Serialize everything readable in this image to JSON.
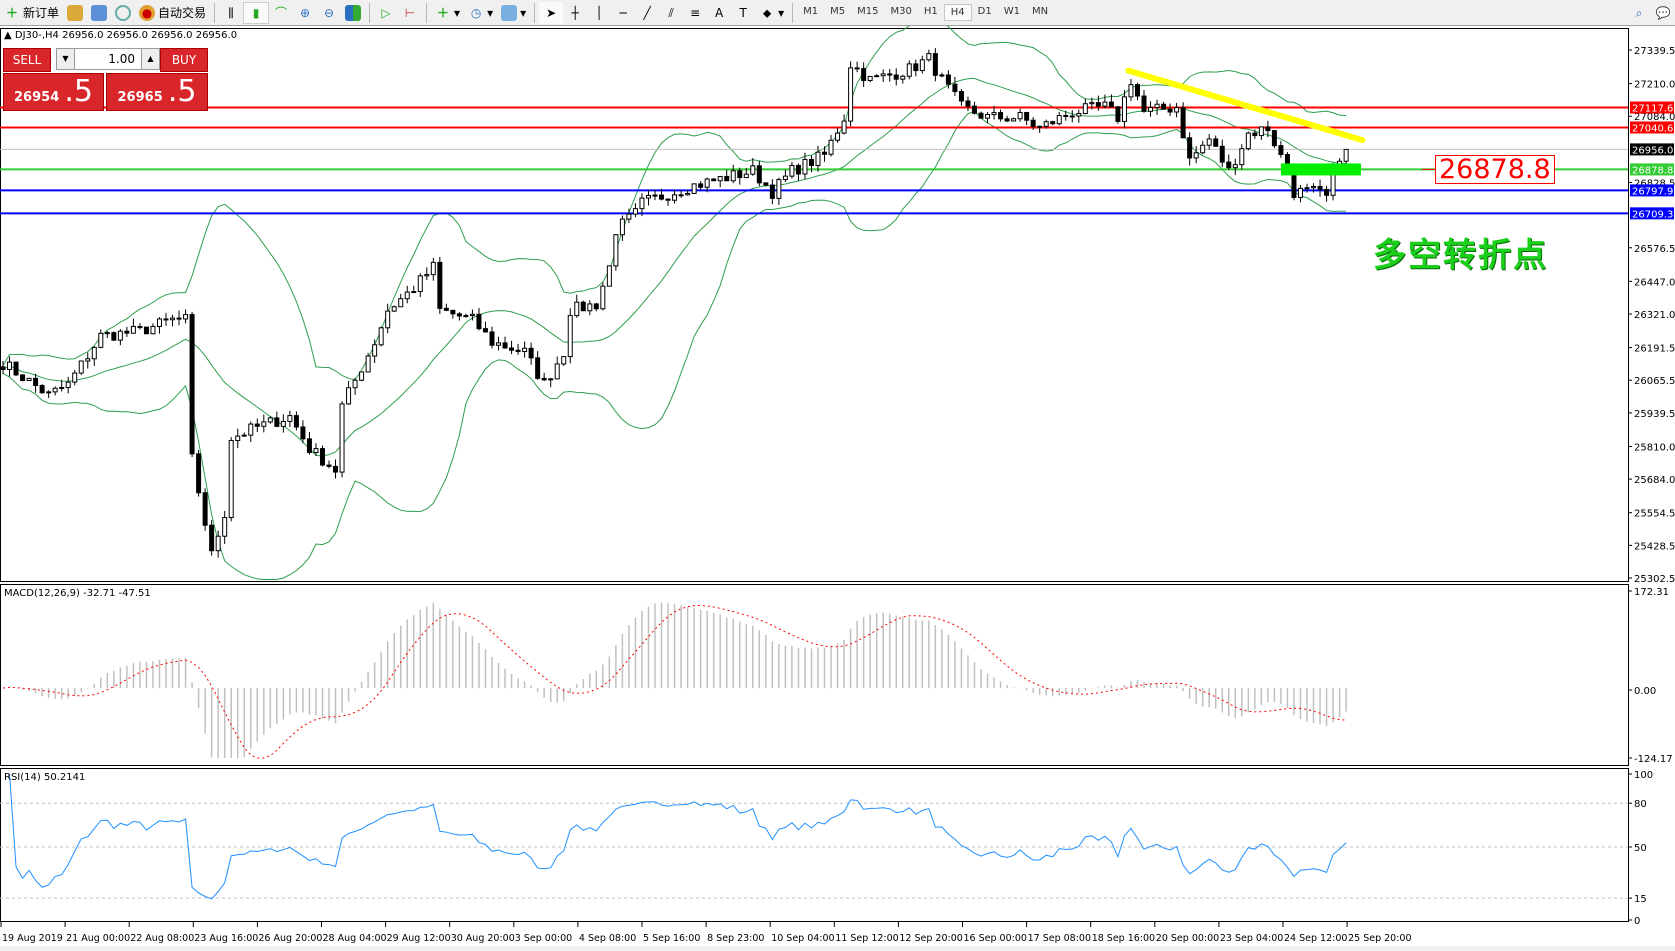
{
  "toolbar": {
    "new_order": "新订单",
    "auto_trading": "自动交易",
    "timeframes": [
      "M1",
      "M5",
      "M15",
      "M30",
      "H1",
      "H4",
      "D1",
      "W1",
      "MN"
    ],
    "active_timeframe": "H4",
    "icons": [
      "new-order-icon",
      "market-watch-icon",
      "navigator-icon",
      "signals-icon",
      "auto-trading-icon",
      "bar-chart-icon",
      "candlestick-icon",
      "line-chart-icon",
      "zoom-in-icon",
      "zoom-out-icon",
      "tile-windows-icon",
      "auto-scroll-icon",
      "chart-shift-icon",
      "indicators-icon",
      "periods-icon",
      "templates-icon",
      "cursor-icon",
      "crosshair-icon",
      "vertical-line-icon",
      "horizontal-line-icon",
      "trendline-icon",
      "equidistant-channel-icon",
      "fibonacci-icon",
      "text-icon",
      "text-label-icon",
      "arrows-icon",
      "search-icon",
      "chat-icon"
    ]
  },
  "chart_header": {
    "symbol": "DJ30-,H4",
    "ohlc": "26956.0 26956.0 26956.0 26956.0"
  },
  "trade_panel": {
    "sell_label": "SELL",
    "buy_label": "BUY",
    "lot": "1.00",
    "sell_price_main": "26954",
    "sell_price_pip": ".5",
    "buy_price_main": "26965",
    "buy_price_pip": ".5"
  },
  "price_axis": {
    "ticks": [
      "27339.5",
      "27210.0",
      "27084.0",
      "26828.5",
      "26576.5",
      "26447.0",
      "26321.0",
      "26191.5",
      "26065.5",
      "25939.5",
      "25810.0",
      "25684.0",
      "25554.5",
      "25428.5",
      "25302.5"
    ],
    "range": [
      25302.5,
      27339.5
    ]
  },
  "levels": [
    {
      "price": 27117.6,
      "label": "27117.6",
      "color": "#ff0000"
    },
    {
      "price": 27040.6,
      "label": "27040.6",
      "color": "#ff0000"
    },
    {
      "price": 26956.0,
      "label": "26956.0",
      "color": "#c0c0c0",
      "label_bg": "#000000"
    },
    {
      "price": 26878.8,
      "label": "26878.8",
      "color": "#32cd32"
    },
    {
      "price": 26797.9,
      "label": "26797.9",
      "color": "#0000ff"
    },
    {
      "price": 26709.3,
      "label": "26709.3",
      "color": "#0000ff"
    }
  ],
  "annotation": {
    "price_label": "26878.8",
    "text": "多空转折点",
    "text_color": "#1ad01a"
  },
  "trendline": {
    "color": "#ffff00",
    "start_price": 27260,
    "end_price": 26992
  },
  "chart_data": {
    "type": "candlestick",
    "bars": 207,
    "close_trace": [
      [
        0,
        26132
      ],
      [
        7,
        26008
      ],
      [
        10,
        26049
      ],
      [
        15,
        26236
      ],
      [
        21,
        26255
      ],
      [
        26,
        26298
      ],
      [
        28,
        26298
      ],
      [
        29,
        25761
      ],
      [
        32,
        25391
      ],
      [
        34,
        25553
      ],
      [
        35,
        25843
      ],
      [
        39,
        25885
      ],
      [
        44,
        25926
      ],
      [
        47,
        25802
      ],
      [
        51,
        25719
      ],
      [
        52,
        25966
      ],
      [
        57,
        26213
      ],
      [
        59,
        26336
      ],
      [
        63,
        26421
      ],
      [
        66,
        26502
      ],
      [
        67,
        26336
      ],
      [
        72,
        26298
      ],
      [
        75,
        26213
      ],
      [
        80,
        26174
      ],
      [
        83,
        26051
      ],
      [
        86,
        26174
      ],
      [
        87,
        26336
      ],
      [
        91,
        26359
      ],
      [
        93,
        26502
      ],
      [
        94,
        26645
      ],
      [
        97,
        26708
      ],
      [
        98,
        26749
      ],
      [
        105,
        26811
      ],
      [
        115,
        26873
      ],
      [
        118,
        26792
      ],
      [
        121,
        26873
      ],
      [
        126,
        26934
      ],
      [
        129,
        27079
      ],
      [
        130,
        27285
      ],
      [
        133,
        27224
      ],
      [
        136,
        27243
      ],
      [
        139,
        27265
      ],
      [
        142,
        27306
      ],
      [
        144,
        27224
      ],
      [
        147,
        27120
      ],
      [
        151,
        27079
      ],
      [
        156,
        27079
      ],
      [
        159,
        27039
      ],
      [
        164,
        27100
      ],
      [
        169,
        27120
      ],
      [
        171,
        27079
      ],
      [
        173,
        27224
      ],
      [
        175,
        27100
      ],
      [
        180,
        27120
      ],
      [
        182,
        26915
      ],
      [
        185,
        26996
      ],
      [
        188,
        26873
      ],
      [
        191,
        27017
      ],
      [
        194,
        27039
      ],
      [
        197,
        26873
      ],
      [
        198,
        26792
      ],
      [
        201,
        26792
      ],
      [
        203,
        26770
      ],
      [
        205,
        26934
      ],
      [
        207,
        26956
      ]
    ],
    "time_labels": [
      "19 Aug 2019",
      "21 Aug 00:00",
      "22 Aug 08:00",
      "23 Aug 16:00",
      "26 Aug 20:00",
      "28 Aug 04:00",
      "29 Aug 12:00",
      "30 Aug 20:00",
      "3 Sep 00:00",
      "4 Sep 08:00",
      "5 Sep 16:00",
      "8 Sep 23:00",
      "10 Sep 04:00",
      "11 Sep 12:00",
      "12 Sep 20:00",
      "16 Sep 00:00",
      "17 Sep 08:00",
      "18 Sep 16:00",
      "20 Sep 00:00",
      "23 Sep 04:00",
      "24 Sep 12:00",
      "25 Sep 20:00"
    ],
    "bollinger": {
      "color": "#2e9e4e"
    },
    "macd": {
      "label": "MACD(12,26,9) -32.71 -47.51",
      "ticks": [
        "172.31",
        "0.00",
        "-124.17"
      ],
      "range": [
        -124.17,
        172.31
      ],
      "hist_color": "#c0c0c0",
      "signal_color": "#ff0000"
    },
    "rsi": {
      "label": "RSI(14) 50.2141",
      "ticks": [
        "100",
        "80",
        "50",
        "15",
        "0"
      ],
      "levels": [
        80,
        50,
        15
      ],
      "color": "#1e90ff"
    }
  }
}
